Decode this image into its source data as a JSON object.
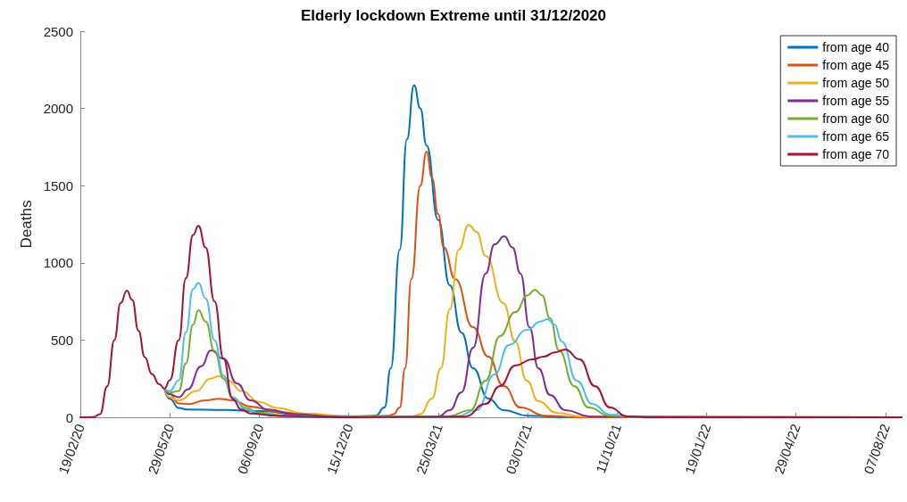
{
  "chart_data": {
    "type": "line",
    "title": "Elderly lockdown Extreme until 31/12/2020",
    "ylabel": "Deaths",
    "xlim": [
      "2020-02-19",
      "2022-08-25"
    ],
    "xticks": [
      {
        "value": "2020-02-19",
        "label": "19/02/20"
      },
      {
        "value": "2020-05-29",
        "label": "29/05/20"
      },
      {
        "value": "2020-09-06",
        "label": "06/09/20"
      },
      {
        "value": "2020-12-15",
        "label": "15/12/20"
      },
      {
        "value": "2021-03-25",
        "label": "25/03/21"
      },
      {
        "value": "2021-07-03",
        "label": "03/07/21"
      },
      {
        "value": "2021-10-11",
        "label": "11/10/21"
      },
      {
        "value": "2022-01-19",
        "label": "19/01/22"
      },
      {
        "value": "2022-04-29",
        "label": "29/04/22"
      },
      {
        "value": "2022-08-07",
        "label": "07/08/22"
      }
    ],
    "ylim": [
      0,
      2500
    ],
    "yticks": [
      0,
      500,
      1000,
      1500,
      2000,
      2500
    ],
    "grid": false,
    "legend": "top right",
    "series": [
      {
        "name": "from age 40",
        "color": "#0072bd",
        "x": [
          "2020-05-23",
          "2020-05-29",
          "2020-06-08",
          "2020-06-18",
          "2020-07-28",
          "2020-09-06",
          "2020-10-26",
          "2020-12-15",
          "2021-01-14",
          "2021-01-24",
          "2021-01-31",
          "2021-02-10",
          "2021-02-18",
          "2021-02-26",
          "2021-03-05",
          "2021-03-12",
          "2021-03-25",
          "2021-04-07",
          "2021-04-20",
          "2021-05-03",
          "2021-05-20",
          "2021-06-06",
          "2021-07-03",
          "2021-08-22",
          "2022-08-25"
        ],
        "values": [
          185,
          120,
          60,
          50,
          48,
          40,
          15,
          5,
          10,
          63,
          317,
          1085,
          1800,
          2150,
          2000,
          1760,
          1277,
          854,
          548,
          317,
          121,
          46,
          10,
          0,
          0
        ]
      },
      {
        "name": "from age 45",
        "color": "#d95319",
        "x": [
          "2020-05-23",
          "2020-05-29",
          "2020-06-08",
          "2020-06-18",
          "2020-07-08",
          "2020-07-23",
          "2020-08-07",
          "2020-08-27",
          "2020-09-26",
          "2020-11-05",
          "2020-12-15",
          "2021-01-29",
          "2021-02-03",
          "2021-02-10",
          "2021-02-16",
          "2021-02-23",
          "2021-03-05",
          "2021-03-12",
          "2021-03-18",
          "2021-03-25",
          "2021-03-31",
          "2021-04-13",
          "2021-05-03",
          "2021-05-20",
          "2021-06-06",
          "2021-06-25",
          "2021-07-23",
          "2021-09-01",
          "2022-08-25"
        ],
        "values": [
          185,
          150,
          90,
          85,
          110,
          120,
          110,
          70,
          35,
          15,
          5,
          10,
          20,
          63,
          317,
          895,
          1500,
          1720,
          1550,
          1316,
          1103,
          895,
          583,
          393,
          202,
          63,
          10,
          0,
          0
        ]
      },
      {
        "name": "from age 50",
        "color": "#edb120",
        "x": [
          "2020-05-23",
          "2020-05-29",
          "2020-06-08",
          "2020-06-28",
          "2020-07-13",
          "2020-07-23",
          "2020-08-02",
          "2020-08-17",
          "2020-09-06",
          "2020-09-26",
          "2020-10-26",
          "2020-12-15",
          "2021-02-03",
          "2021-02-23",
          "2021-03-05",
          "2021-03-18",
          "2021-03-28",
          "2021-04-07",
          "2021-04-17",
          "2021-04-28",
          "2021-05-07",
          "2021-05-17",
          "2021-06-06",
          "2021-06-19",
          "2021-07-02",
          "2021-07-15",
          "2021-08-04",
          "2021-09-01",
          "2022-08-25"
        ],
        "values": [
          185,
          130,
          110,
          170,
          250,
          265,
          240,
          170,
          100,
          60,
          25,
          8,
          0,
          5,
          20,
          121,
          317,
          700,
          1085,
          1245,
          1200,
          1045,
          739,
          491,
          237,
          104,
          29,
          5,
          0
        ]
      },
      {
        "name": "from age 55",
        "color": "#7e2f8e",
        "x": [
          "2020-05-23",
          "2020-05-29",
          "2020-06-08",
          "2020-06-18",
          "2020-07-03",
          "2020-07-14",
          "2020-07-28",
          "2020-08-12",
          "2020-08-27",
          "2020-09-16",
          "2020-10-16",
          "2020-11-25",
          "2021-01-14",
          "2021-03-25",
          "2021-04-07",
          "2021-04-20",
          "2021-05-03",
          "2021-05-17",
          "2021-05-27",
          "2021-06-07",
          "2021-06-16",
          "2021-06-25",
          "2021-07-05",
          "2021-07-15",
          "2021-07-28",
          "2021-08-14",
          "2021-09-11",
          "2022-08-25"
        ],
        "values": [
          185,
          150,
          130,
          180,
          330,
          433,
          380,
          220,
          110,
          50,
          20,
          5,
          0,
          5,
          46,
          162,
          450,
          930,
          1120,
          1172,
          1100,
          930,
          583,
          317,
          144,
          46,
          5,
          0
        ]
      },
      {
        "name": "from age 60",
        "color": "#77ac30",
        "x": [
          "2020-05-23",
          "2020-05-29",
          "2020-06-08",
          "2020-06-16",
          "2020-06-24",
          "2020-06-30",
          "2020-07-08",
          "2020-07-18",
          "2020-07-28",
          "2020-08-07",
          "2020-08-22",
          "2020-09-06",
          "2020-10-06",
          "2020-11-15",
          "2021-04-04",
          "2021-04-30",
          "2021-05-17",
          "2021-06-02",
          "2021-06-19",
          "2021-07-03",
          "2021-07-11",
          "2021-07-19",
          "2021-07-28",
          "2021-08-07",
          "2021-08-24",
          "2021-09-09",
          "2021-10-03",
          "2021-11-10",
          "2022-08-25"
        ],
        "values": [
          185,
          160,
          170,
          350,
          600,
          695,
          620,
          430,
          250,
          130,
          60,
          30,
          10,
          0,
          5,
          46,
          237,
          525,
          681,
          790,
          826,
          790,
          641,
          433,
          202,
          63,
          10,
          0,
          0
        ]
      },
      {
        "name": "from age 65",
        "color": "#4dbeee",
        "x": [
          "2020-05-23",
          "2020-05-29",
          "2020-06-08",
          "2020-06-16",
          "2020-06-24",
          "2020-06-30",
          "2020-07-08",
          "2020-07-18",
          "2020-07-28",
          "2020-08-07",
          "2020-08-22",
          "2020-09-06",
          "2020-10-06",
          "2020-11-15",
          "2021-04-14",
          "2021-05-07",
          "2021-05-27",
          "2021-06-12",
          "2021-07-02",
          "2021-07-18",
          "2021-07-25",
          "2021-08-02",
          "2021-08-10",
          "2021-08-27",
          "2021-09-13",
          "2021-10-03",
          "2021-10-31",
          "2021-11-30",
          "2022-08-25"
        ],
        "values": [
          185,
          170,
          240,
          550,
          830,
          870,
          770,
          500,
          270,
          130,
          50,
          20,
          5,
          0,
          5,
          46,
          277,
          468,
          566,
          620,
          635,
          600,
          491,
          237,
          87,
          17,
          3,
          0,
          0
        ]
      },
      {
        "name": "from age 70",
        "color": "#a2142f",
        "x": [
          "2020-02-19",
          "2020-03-05",
          "2020-03-12",
          "2020-03-20",
          "2020-03-28",
          "2020-04-04",
          "2020-04-11",
          "2020-04-17",
          "2020-04-24",
          "2020-05-01",
          "2020-05-09",
          "2020-05-17",
          "2020-05-23",
          "2020-05-29",
          "2020-06-08",
          "2020-06-16",
          "2020-06-24",
          "2020-06-30",
          "2020-07-08",
          "2020-07-18",
          "2020-07-28",
          "2020-08-07",
          "2020-08-17",
          "2020-08-27",
          "2020-09-26",
          "2020-11-05",
          "2020-12-15",
          "2021-04-24",
          "2021-05-17",
          "2021-06-02",
          "2021-06-19",
          "2021-07-08",
          "2021-07-21",
          "2021-08-02",
          "2021-08-14",
          "2021-08-30",
          "2021-09-16",
          "2021-10-03",
          "2021-10-22",
          "2021-11-20",
          "2022-08-25"
        ],
        "values": [
          0,
          2,
          20,
          200,
          500,
          740,
          820,
          760,
          560,
          390,
          280,
          215,
          185,
          240,
          500,
          900,
          1180,
          1240,
          1100,
          750,
          380,
          120,
          50,
          25,
          10,
          3,
          0,
          5,
          87,
          202,
          335,
          375,
          393,
          420,
          439,
          375,
          202,
          63,
          6,
          0,
          0
        ]
      }
    ]
  }
}
